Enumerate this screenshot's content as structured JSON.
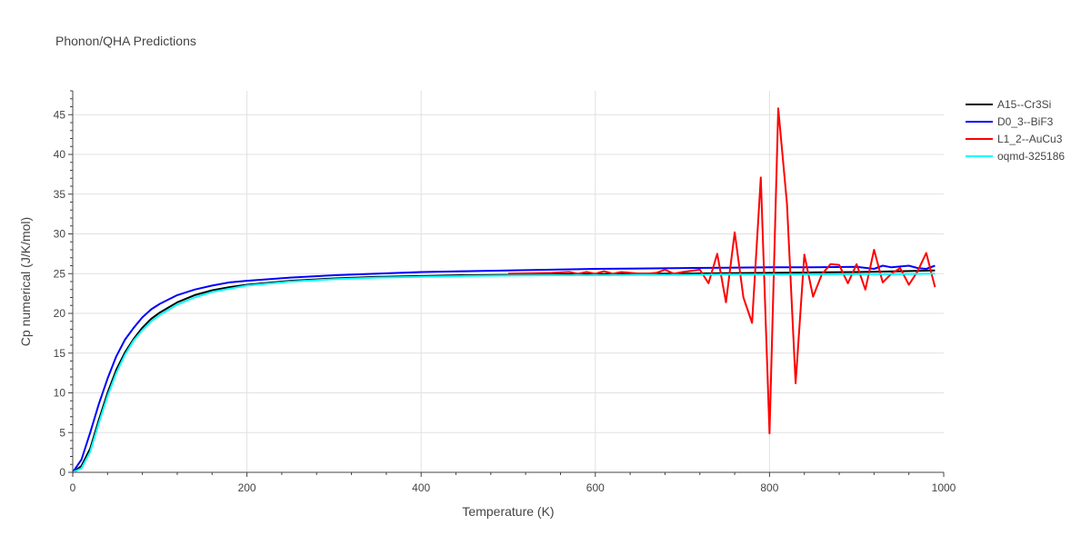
{
  "chart_data": {
    "type": "line",
    "title": "Phonon/QHA Predictions",
    "xlabel": "Temperature (K)",
    "ylabel": "Cp numerical (J/K/mol)",
    "xlim": [
      0,
      1000
    ],
    "ylim": [
      0,
      48
    ],
    "xticks": [
      0,
      200,
      400,
      600,
      800,
      1000
    ],
    "yticks": [
      0,
      5,
      10,
      15,
      20,
      25,
      30,
      35,
      40,
      45
    ],
    "grid": true,
    "legend_position": "top-right",
    "series": [
      {
        "name": "A15--Cr3Si",
        "color": "#000000",
        "x": [
          0,
          10,
          20,
          30,
          40,
          50,
          60,
          70,
          80,
          90,
          100,
          120,
          140,
          160,
          180,
          200,
          250,
          300,
          350,
          400,
          450,
          500,
          550,
          600,
          650,
          700,
          750,
          800,
          850,
          900,
          950,
          990
        ],
        "y": [
          0,
          0.8,
          3.0,
          6.6,
          10.0,
          12.9,
          15.1,
          16.8,
          18.2,
          19.3,
          20.1,
          21.4,
          22.3,
          22.9,
          23.3,
          23.6,
          24.1,
          24.4,
          24.6,
          24.7,
          24.8,
          24.85,
          24.9,
          24.95,
          25.0,
          25.0,
          25.05,
          25.1,
          25.15,
          25.2,
          25.3,
          25.4
        ]
      },
      {
        "name": "D0_3--BiF3",
        "color": "#0000ff",
        "x": [
          0,
          10,
          20,
          30,
          40,
          50,
          60,
          70,
          80,
          90,
          100,
          120,
          140,
          160,
          180,
          200,
          250,
          300,
          350,
          400,
          450,
          500,
          550,
          600,
          650,
          700,
          750,
          800,
          850,
          900,
          920,
          930,
          940,
          960,
          970,
          980,
          990
        ],
        "y": [
          0,
          1.6,
          5.0,
          8.6,
          11.8,
          14.6,
          16.7,
          18.2,
          19.5,
          20.5,
          21.2,
          22.3,
          23.0,
          23.5,
          23.9,
          24.1,
          24.5,
          24.8,
          25.0,
          25.2,
          25.3,
          25.4,
          25.5,
          25.6,
          25.65,
          25.7,
          25.75,
          25.8,
          25.8,
          25.85,
          25.6,
          26.0,
          25.8,
          26.0,
          25.7,
          25.6,
          26.0
        ]
      },
      {
        "name": "L1_2--AuCu3",
        "color": "#ff0000",
        "x": [
          500,
          550,
          570,
          580,
          590,
          600,
          610,
          620,
          630,
          640,
          650,
          660,
          670,
          680,
          690,
          700,
          720,
          730,
          740,
          750,
          760,
          770,
          780,
          790,
          800,
          810,
          820,
          830,
          840,
          850,
          860,
          870,
          880,
          890,
          900,
          910,
          920,
          930,
          940,
          950,
          960,
          970,
          980,
          990
        ],
        "y": [
          25.0,
          25.1,
          25.2,
          25.0,
          25.2,
          25.0,
          25.3,
          25.0,
          25.2,
          25.1,
          25.0,
          25.0,
          25.1,
          25.5,
          25.0,
          25.2,
          25.5,
          23.8,
          27.5,
          21.4,
          30.2,
          22.0,
          18.8,
          37.1,
          4.9,
          45.8,
          33.8,
          11.2,
          27.4,
          22.1,
          24.9,
          26.2,
          26.1,
          23.8,
          26.2,
          23.0,
          28.0,
          23.9,
          25.0,
          25.7,
          23.6,
          25.3,
          27.6,
          23.3
        ]
      },
      {
        "name": "oqmd-325186",
        "color": "#00ffff",
        "x": [
          0,
          10,
          20,
          30,
          40,
          50,
          60,
          70,
          80,
          90,
          100,
          120,
          140,
          160,
          180,
          200,
          250,
          300,
          350,
          400,
          450,
          500,
          550,
          600,
          650,
          700,
          750,
          800,
          850,
          900,
          950,
          990
        ],
        "y": [
          0,
          0.5,
          2.6,
          6.2,
          9.6,
          12.5,
          14.8,
          16.6,
          17.9,
          19.0,
          19.8,
          21.1,
          22.0,
          22.7,
          23.1,
          23.5,
          24.0,
          24.3,
          24.5,
          24.6,
          24.7,
          24.75,
          24.8,
          24.8,
          24.85,
          24.85,
          24.9,
          24.9,
          24.9,
          24.95,
          24.95,
          25.0
        ]
      }
    ]
  }
}
